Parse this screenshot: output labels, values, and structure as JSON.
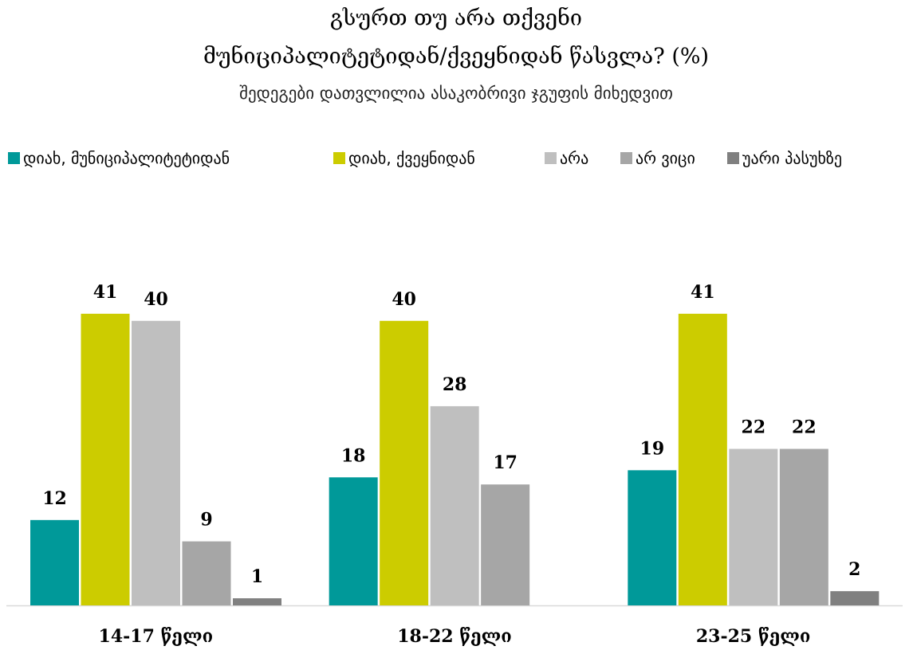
{
  "chart_data": {
    "type": "bar",
    "title": [
      "გსურთ თუ არა თქვენი",
      "მუნიციპალიტეტიდან/ქვეყნიდან  წასვლა? (%)"
    ],
    "subtitle": "შედეგები დათვლილია ასაკობრივი ჯგუფის მიხედვით",
    "categories": [
      "14-17 წელი",
      "18-22 წელი",
      "23-25 წელი"
    ],
    "series": [
      {
        "name": "დიახ, მუნიციპალიტეტიდან",
        "color": "#009999",
        "values": [
          12,
          18,
          19
        ]
      },
      {
        "name": "დიახ, ქვეყნიდან",
        "color": "#cccc00",
        "values": [
          41,
          40,
          41
        ]
      },
      {
        "name": "არა",
        "color": "#bfbfbf",
        "values": [
          40,
          28,
          22
        ]
      },
      {
        "name": "არ ვიცი",
        "color": "#a6a6a6",
        "values": [
          9,
          17,
          22
        ]
      },
      {
        "name": "უარი პასუხზე",
        "color": "#808080",
        "values": [
          1,
          null,
          2
        ]
      }
    ],
    "ylim": [
      0,
      45
    ],
    "legend": "top"
  }
}
